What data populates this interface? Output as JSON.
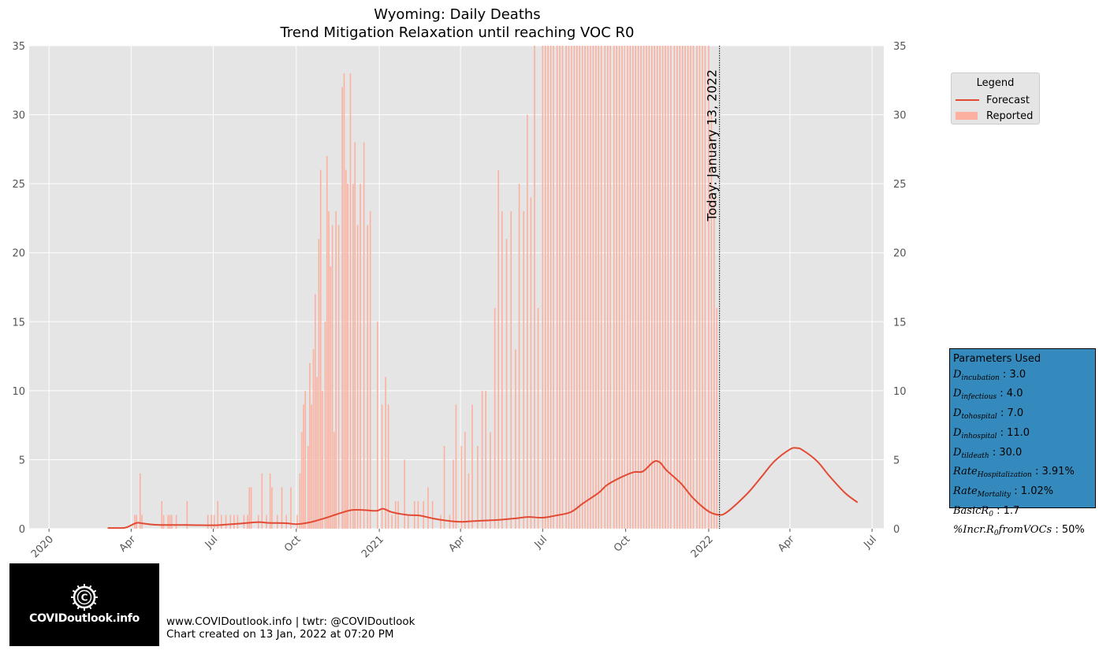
{
  "chart_data": {
    "type": "bar+line",
    "title": "Wyoming: Daily Deaths",
    "subtitle": "Trend Mitigation Relaxation until reaching VOC R0",
    "ylim": [
      0,
      35
    ],
    "yticks": [
      0,
      5,
      10,
      15,
      20,
      25,
      30,
      35
    ],
    "x_range": [
      "2019-12-10",
      "2022-07-14"
    ],
    "xticks": [
      {
        "date": "2020-01-01",
        "label": "2020"
      },
      {
        "date": "2020-04-01",
        "label": "Apr"
      },
      {
        "date": "2020-07-01",
        "label": "Jul"
      },
      {
        "date": "2020-10-01",
        "label": "Oct"
      },
      {
        "date": "2021-01-01",
        "label": "2021"
      },
      {
        "date": "2021-04-01",
        "label": "Apr"
      },
      {
        "date": "2021-07-01",
        "label": "Jul"
      },
      {
        "date": "2021-10-01",
        "label": "Oct"
      },
      {
        "date": "2022-01-01",
        "label": "2022"
      },
      {
        "date": "2022-04-01",
        "label": "Apr"
      },
      {
        "date": "2022-07-01",
        "label": "Jul"
      }
    ],
    "grid": true,
    "legend_placement": "outside-right",
    "today_marker": {
      "date": "2022-01-13",
      "label": "Today: January 13, 2022"
    },
    "series": [
      {
        "name": "Reported",
        "kind": "bar",
        "points": [
          [
            "2020-04-05",
            1
          ],
          [
            "2020-04-07",
            1
          ],
          [
            "2020-04-11",
            4
          ],
          [
            "2020-04-13",
            1
          ],
          [
            "2020-05-05",
            2
          ],
          [
            "2020-05-07",
            1
          ],
          [
            "2020-05-12",
            1
          ],
          [
            "2020-05-14",
            1
          ],
          [
            "2020-05-16",
            1
          ],
          [
            "2020-05-21",
            1
          ],
          [
            "2020-06-02",
            2
          ],
          [
            "2020-06-25",
            1
          ],
          [
            "2020-06-29",
            1
          ],
          [
            "2020-07-02",
            1
          ],
          [
            "2020-07-06",
            2
          ],
          [
            "2020-07-10",
            1
          ],
          [
            "2020-07-15",
            1
          ],
          [
            "2020-07-20",
            1
          ],
          [
            "2020-07-24",
            1
          ],
          [
            "2020-07-28",
            1
          ],
          [
            "2020-08-04",
            1
          ],
          [
            "2020-08-08",
            1
          ],
          [
            "2020-08-10",
            3
          ],
          [
            "2020-08-12",
            3
          ],
          [
            "2020-08-20",
            1
          ],
          [
            "2020-08-24",
            4
          ],
          [
            "2020-08-29",
            1
          ],
          [
            "2020-09-02",
            4
          ],
          [
            "2020-09-04",
            3
          ],
          [
            "2020-09-10",
            1
          ],
          [
            "2020-09-15",
            3
          ],
          [
            "2020-09-20",
            1
          ],
          [
            "2020-09-25",
            3
          ],
          [
            "2020-10-02",
            1
          ],
          [
            "2020-10-05",
            4
          ],
          [
            "2020-10-07",
            7
          ],
          [
            "2020-10-09",
            9
          ],
          [
            "2020-10-11",
            10
          ],
          [
            "2020-10-14",
            6
          ],
          [
            "2020-10-16",
            12
          ],
          [
            "2020-10-18",
            9
          ],
          [
            "2020-10-20",
            13
          ],
          [
            "2020-10-22",
            17
          ],
          [
            "2020-10-24",
            11
          ],
          [
            "2020-10-26",
            21
          ],
          [
            "2020-10-28",
            26
          ],
          [
            "2020-10-30",
            10
          ],
          [
            "2020-11-02",
            15
          ],
          [
            "2020-11-04",
            27
          ],
          [
            "2020-11-06",
            23
          ],
          [
            "2020-11-08",
            19
          ],
          [
            "2020-11-10",
            22
          ],
          [
            "2020-11-12",
            7
          ],
          [
            "2020-11-14",
            23
          ],
          [
            "2020-11-17",
            22
          ],
          [
            "2020-11-21",
            32
          ],
          [
            "2020-11-23",
            33
          ],
          [
            "2020-11-25",
            26
          ],
          [
            "2020-11-27",
            25
          ],
          [
            "2020-11-30",
            33
          ],
          [
            "2020-12-03",
            25
          ],
          [
            "2020-12-05",
            28
          ],
          [
            "2020-12-08",
            22
          ],
          [
            "2020-12-11",
            25
          ],
          [
            "2020-12-15",
            28
          ],
          [
            "2020-12-19",
            22
          ],
          [
            "2020-12-22",
            23
          ],
          [
            "2020-12-30",
            15
          ],
          [
            "2021-01-04",
            9
          ],
          [
            "2021-01-08",
            11
          ],
          [
            "2021-01-11",
            9
          ],
          [
            "2021-01-15",
            1
          ],
          [
            "2021-01-19",
            2
          ],
          [
            "2021-01-22",
            2
          ],
          [
            "2021-01-29",
            5
          ],
          [
            "2021-02-02",
            1
          ],
          [
            "2021-02-09",
            2
          ],
          [
            "2021-02-13",
            2
          ],
          [
            "2021-02-19",
            2
          ],
          [
            "2021-02-24",
            3
          ],
          [
            "2021-03-01",
            2
          ],
          [
            "2021-03-10",
            1
          ],
          [
            "2021-03-14",
            6
          ],
          [
            "2021-03-20",
            1
          ],
          [
            "2021-03-24",
            5
          ],
          [
            "2021-03-27",
            9
          ],
          [
            "2021-04-02",
            6
          ],
          [
            "2021-04-06",
            7
          ],
          [
            "2021-04-10",
            4
          ],
          [
            "2021-04-14",
            9
          ],
          [
            "2021-04-20",
            6
          ],
          [
            "2021-04-25",
            10
          ],
          [
            "2021-04-29",
            10
          ],
          [
            "2021-05-04",
            7
          ],
          [
            "2021-05-09",
            16
          ],
          [
            "2021-05-13",
            26
          ],
          [
            "2021-05-17",
            23
          ],
          [
            "2021-05-22",
            21
          ],
          [
            "2021-05-27",
            23
          ],
          [
            "2021-06-01",
            13
          ],
          [
            "2021-06-05",
            25
          ],
          [
            "2021-06-10",
            23
          ],
          [
            "2021-06-14",
            30
          ],
          [
            "2021-06-18",
            24
          ],
          [
            "2021-06-22",
            35
          ],
          [
            "2021-06-26",
            16
          ],
          [
            "2021-07-01",
            35
          ],
          [
            "2021-07-04",
            35
          ],
          [
            "2021-07-07",
            35
          ],
          [
            "2021-07-10",
            35
          ],
          [
            "2021-07-13",
            35
          ],
          [
            "2021-07-17",
            35
          ],
          [
            "2021-07-20",
            35
          ],
          [
            "2021-07-23",
            35
          ],
          [
            "2021-07-27",
            35
          ],
          [
            "2021-07-30",
            35
          ],
          [
            "2021-08-02",
            35
          ],
          [
            "2021-08-05",
            35
          ],
          [
            "2021-08-08",
            35
          ],
          [
            "2021-08-11",
            35
          ],
          [
            "2021-08-14",
            35
          ],
          [
            "2021-08-17",
            35
          ],
          [
            "2021-08-20",
            35
          ],
          [
            "2021-08-23",
            35
          ],
          [
            "2021-08-26",
            35
          ],
          [
            "2021-08-29",
            35
          ],
          [
            "2021-09-01",
            35
          ],
          [
            "2021-09-04",
            35
          ],
          [
            "2021-09-08",
            35
          ],
          [
            "2021-09-11",
            35
          ],
          [
            "2021-09-14",
            35
          ],
          [
            "2021-09-18",
            35
          ],
          [
            "2021-09-21",
            35
          ],
          [
            "2021-09-24",
            35
          ],
          [
            "2021-09-27",
            35
          ],
          [
            "2021-09-30",
            35
          ],
          [
            "2021-10-03",
            35
          ],
          [
            "2021-10-06",
            35
          ],
          [
            "2021-10-09",
            35
          ],
          [
            "2021-10-12",
            35
          ],
          [
            "2021-10-15",
            35
          ],
          [
            "2021-10-18",
            35
          ],
          [
            "2021-10-21",
            35
          ],
          [
            "2021-10-24",
            35
          ],
          [
            "2021-10-27",
            35
          ],
          [
            "2021-10-30",
            35
          ],
          [
            "2021-11-02",
            35
          ],
          [
            "2021-11-05",
            35
          ],
          [
            "2021-11-08",
            35
          ],
          [
            "2021-11-11",
            35
          ],
          [
            "2021-11-14",
            35
          ],
          [
            "2021-11-17",
            35
          ],
          [
            "2021-11-20",
            35
          ],
          [
            "2021-11-24",
            35
          ],
          [
            "2021-11-27",
            35
          ],
          [
            "2021-11-30",
            35
          ],
          [
            "2021-12-03",
            35
          ],
          [
            "2021-12-06",
            35
          ],
          [
            "2021-12-09",
            35
          ],
          [
            "2021-12-12",
            35
          ],
          [
            "2021-12-15",
            35
          ],
          [
            "2021-12-19",
            35
          ],
          [
            "2021-12-22",
            35
          ],
          [
            "2021-12-25",
            35
          ],
          [
            "2021-12-28",
            35
          ],
          [
            "2022-01-01",
            35
          ],
          [
            "2022-01-04",
            30
          ],
          [
            "2022-01-07",
            24
          ],
          [
            "2022-01-10",
            16
          ]
        ]
      },
      {
        "name": "Forecast",
        "kind": "line",
        "points": [
          [
            "2020-03-06",
            0.05
          ],
          [
            "2020-03-20",
            0.05
          ],
          [
            "2020-03-27",
            0.1
          ],
          [
            "2020-04-07",
            0.42
          ],
          [
            "2020-04-14",
            0.38
          ],
          [
            "2020-05-01",
            0.28
          ],
          [
            "2020-06-01",
            0.27
          ],
          [
            "2020-07-01",
            0.25
          ],
          [
            "2020-07-15",
            0.3
          ],
          [
            "2020-08-01",
            0.38
          ],
          [
            "2020-08-20",
            0.48
          ],
          [
            "2020-09-01",
            0.42
          ],
          [
            "2020-09-20",
            0.4
          ],
          [
            "2020-10-01",
            0.33
          ],
          [
            "2020-10-15",
            0.45
          ],
          [
            "2020-11-01",
            0.75
          ],
          [
            "2020-11-15",
            1.05
          ],
          [
            "2020-12-01",
            1.35
          ],
          [
            "2020-12-15",
            1.35
          ],
          [
            "2020-12-29",
            1.3
          ],
          [
            "2021-01-05",
            1.45
          ],
          [
            "2021-01-15",
            1.2
          ],
          [
            "2021-02-01",
            1.0
          ],
          [
            "2021-02-15",
            0.95
          ],
          [
            "2021-03-01",
            0.75
          ],
          [
            "2021-03-15",
            0.6
          ],
          [
            "2021-04-01",
            0.5
          ],
          [
            "2021-04-15",
            0.55
          ],
          [
            "2021-05-01",
            0.6
          ],
          [
            "2021-05-15",
            0.65
          ],
          [
            "2021-06-01",
            0.75
          ],
          [
            "2021-06-15",
            0.85
          ],
          [
            "2021-07-01",
            0.8
          ],
          [
            "2021-07-15",
            0.95
          ],
          [
            "2021-08-01",
            1.2
          ],
          [
            "2021-08-15",
            1.85
          ],
          [
            "2021-09-01",
            2.6
          ],
          [
            "2021-09-10",
            3.15
          ],
          [
            "2021-09-25",
            3.7
          ],
          [
            "2021-10-10",
            4.1
          ],
          [
            "2021-10-20",
            4.15
          ],
          [
            "2021-11-01",
            4.85
          ],
          [
            "2021-11-08",
            4.8
          ],
          [
            "2021-11-15",
            4.25
          ],
          [
            "2021-12-01",
            3.3
          ],
          [
            "2021-12-15",
            2.2
          ],
          [
            "2022-01-01",
            1.25
          ],
          [
            "2022-01-13",
            1.0
          ],
          [
            "2022-01-20",
            1.15
          ],
          [
            "2022-02-01",
            1.8
          ],
          [
            "2022-02-15",
            2.7
          ],
          [
            "2022-03-01",
            3.8
          ],
          [
            "2022-03-15",
            4.9
          ],
          [
            "2022-04-01",
            5.75
          ],
          [
            "2022-04-08",
            5.85
          ],
          [
            "2022-04-15",
            5.7
          ],
          [
            "2022-05-01",
            4.9
          ],
          [
            "2022-05-15",
            3.8
          ],
          [
            "2022-06-01",
            2.6
          ],
          [
            "2022-06-15",
            1.9
          ]
        ]
      }
    ]
  },
  "legend": {
    "title": "Legend",
    "items": [
      {
        "label": "Forecast",
        "color": "#E24A33",
        "kind": "line"
      },
      {
        "label": "Reported",
        "color": "#FBB0A0",
        "kind": "bar"
      }
    ]
  },
  "parameters": {
    "title": "Parameters Used",
    "rows": [
      {
        "sym": "D",
        "sub": "incubation",
        "value": "3.0"
      },
      {
        "sym": "D",
        "sub": "infectious",
        "value": "4.0"
      },
      {
        "sym": "D",
        "sub": "tohospital",
        "value": "7.0"
      },
      {
        "sym": "D",
        "sub": "inhospital",
        "value": "11.0"
      },
      {
        "sym": "D",
        "sub": "tildeath",
        "value": "30.0"
      },
      {
        "sym": "Rate",
        "sub": "Hospitalization",
        "value": "3.91%"
      },
      {
        "sym": "Rate",
        "sub": "Mortality",
        "value": "1.02%"
      },
      {
        "sym": "BasicR",
        "sub": "0",
        "value": "1.7"
      },
      {
        "sym": "%Incr.R",
        "sub": "0",
        "suffix": "fromVOCs",
        "value": "50%"
      }
    ]
  },
  "logo": {
    "text": "COVIDoutlook.info"
  },
  "footer": {
    "line1": "www.COVIDoutlook.info | twtr: @COVIDoutlook",
    "line2": "Chart created on 13 Jan, 2022 at 07:20 PM"
  },
  "colors": {
    "plot_bg": "#E5E5E5",
    "grid": "#FFFFFF",
    "forecast": "#E24A33",
    "reported": "#FBB0A0",
    "params_bg": "#348ABD"
  }
}
